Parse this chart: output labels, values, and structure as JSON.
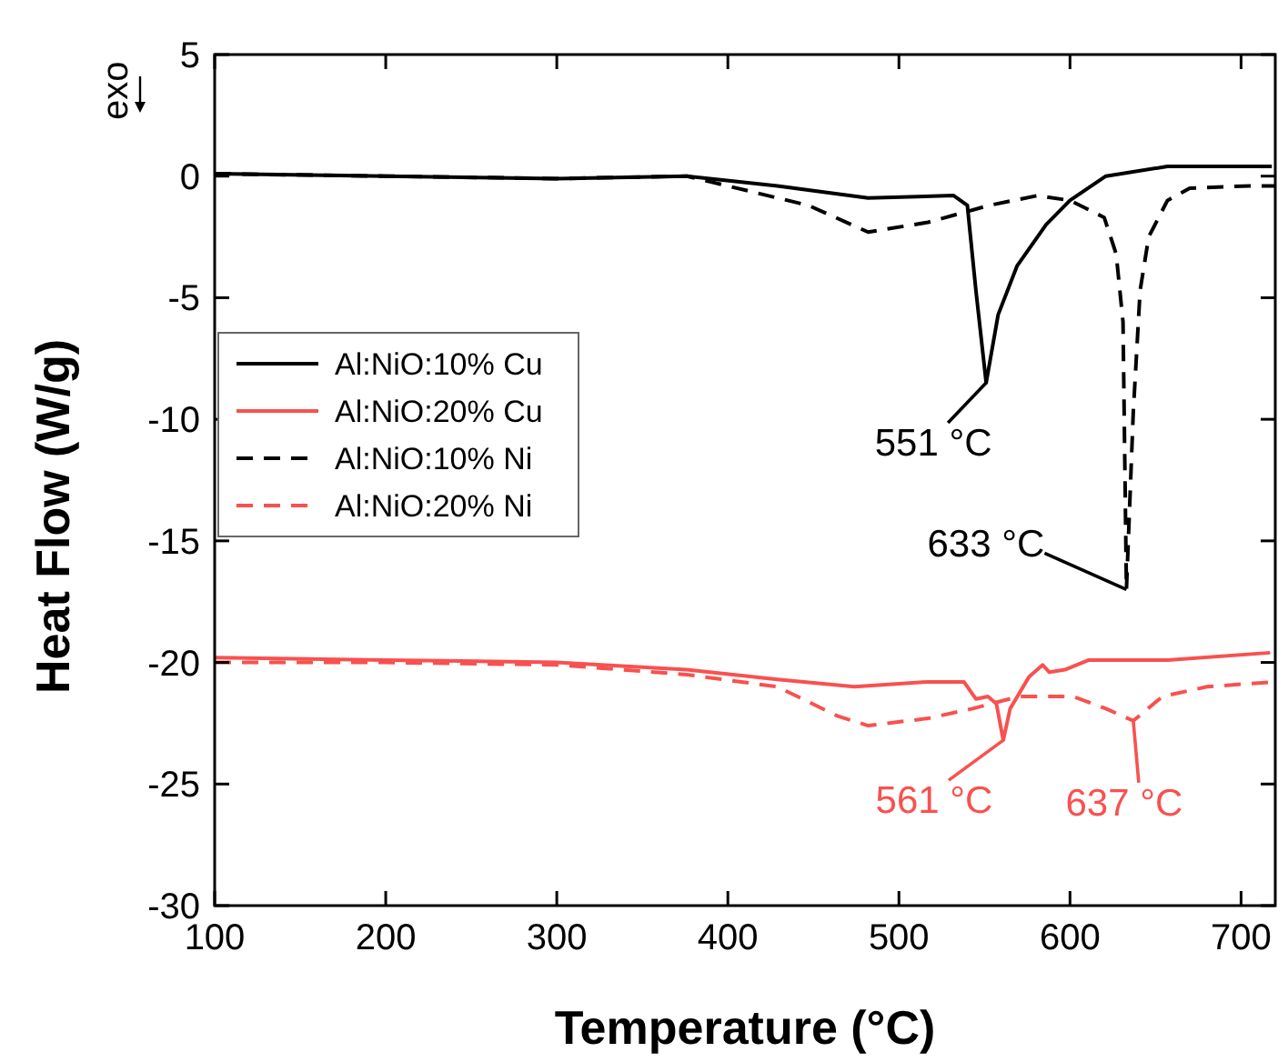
{
  "chart_data": {
    "type": "line",
    "xlabel": "Temperature (°C)",
    "ylabel": "Heat Flow (W/g)",
    "xlim": [
      100,
      720
    ],
    "ylim": [
      -30,
      5
    ],
    "xticks": [
      100,
      200,
      300,
      400,
      500,
      600,
      700
    ],
    "yticks": [
      -30,
      -25,
      -20,
      -15,
      -10,
      -5,
      0,
      5
    ],
    "grid": false,
    "legend": "left",
    "marker": "none",
    "series": [
      {
        "name": "Al:NiO:10% Cu",
        "color": "#000000",
        "line_style": "solid",
        "x": [
          100,
          200,
          300,
          376,
          429,
          482,
          532,
          540,
          545,
          551,
          558,
          569,
          586,
          600,
          621,
          657,
          718
        ],
        "values": [
          0.1,
          0.0,
          -0.1,
          0.0,
          -0.4,
          -0.9,
          -0.8,
          -1.2,
          -4.7,
          -8.5,
          -5.7,
          -3.7,
          -2.0,
          -1.0,
          0.0,
          0.4,
          0.4
        ]
      },
      {
        "name": "Al:NiO:20% Cu",
        "color": "#f8514f",
        "line_style": "solid",
        "x": [
          100,
          200,
          300,
          376,
          429,
          474,
          517,
          538,
          545,
          552,
          557,
          561,
          565,
          576,
          584,
          588,
          597,
          611,
          657,
          717
        ],
        "values": [
          -19.8,
          -19.9,
          -20.0,
          -20.3,
          -20.7,
          -21.0,
          -20.8,
          -20.8,
          -21.5,
          -21.4,
          -21.7,
          -23.2,
          -21.9,
          -20.6,
          -20.1,
          -20.4,
          -20.3,
          -19.9,
          -19.9,
          -19.6
        ]
      },
      {
        "name": "Al:NiO:10% Ni",
        "color": "#000000",
        "line_style": "dashed",
        "x": [
          100,
          200,
          300,
          376,
          447,
          482,
          517,
          553,
          581,
          600,
          620,
          627,
          631,
          633,
          637,
          641,
          646,
          657,
          670,
          705,
          720
        ],
        "values": [
          0.1,
          0.0,
          -0.1,
          0.0,
          -1.2,
          -2.3,
          -1.9,
          -1.2,
          -0.8,
          -1.0,
          -1.7,
          -3.2,
          -6.0,
          -17.0,
          -9.7,
          -4.7,
          -2.5,
          -1.0,
          -0.5,
          -0.4,
          -0.4
        ]
      },
      {
        "name": "Al:NiO:20% Ni",
        "color": "#f8514f",
        "line_style": "dashed",
        "x": [
          100,
          200,
          300,
          376,
          429,
          464,
          482,
          517,
          543,
          570,
          602,
          621,
          637,
          654,
          680,
          719
        ],
        "values": [
          -20.0,
          -20.0,
          -20.1,
          -20.5,
          -21.0,
          -22.2,
          -22.6,
          -22.3,
          -21.9,
          -21.4,
          -21.4,
          -21.9,
          -22.4,
          -21.4,
          -21.0,
          -20.8
        ]
      }
    ],
    "annotations": [
      "exo",
      {
        "text": "551 °C",
        "x": 551,
        "y": -8.5
      },
      {
        "text": "633 °C",
        "x": 633,
        "y": -17.0
      },
      {
        "text": "561 °C",
        "x": 561,
        "y": -23.2
      },
      {
        "text": "637 °C",
        "x": 637,
        "y": -22.4
      }
    ]
  }
}
